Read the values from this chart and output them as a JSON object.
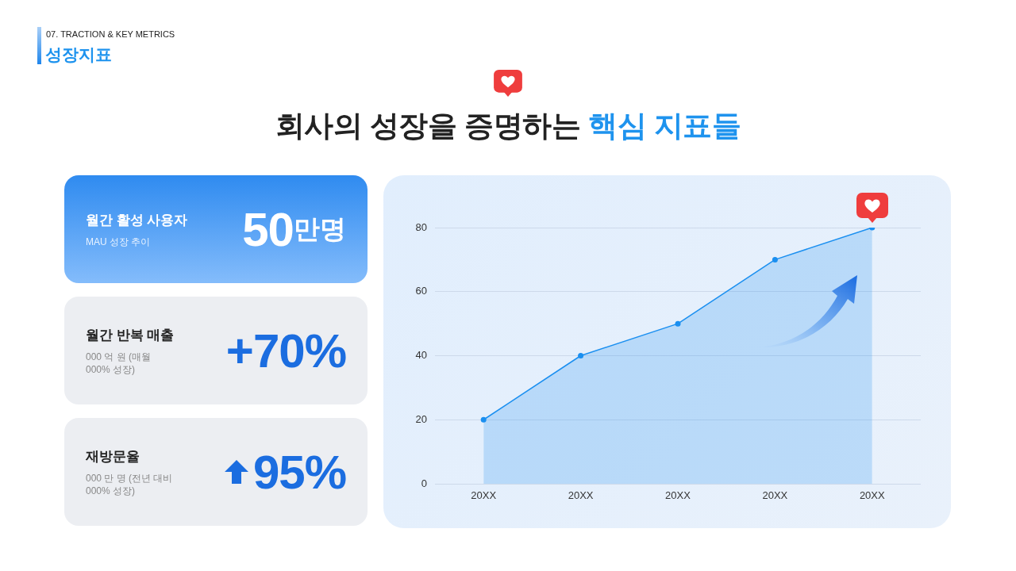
{
  "chart_data": [
    {
      "type": "other",
      "title": "회사의 성장을 증명하는 핵심 지표들",
      "annotations": [
        "07. TRACTION & KEY METRICS",
        "성장지표"
      ]
    },
    {
      "type": "other",
      "annotations": [
        "월간 활성 사용자",
        "MAU 성장 추이",
        "50만명",
        "월간 반복 매출",
        "000 억 원 (매월 000% 성장)",
        "+70%",
        "재방문율",
        "000 만 명 (전년 대비 000% 성장)",
        "95%"
      ]
    },
    {
      "type": "area",
      "categories": [
        "20XX",
        "20XX",
        "20XX",
        "20XX",
        "20XX"
      ],
      "values": [
        20,
        40,
        50,
        70,
        80
      ],
      "color": "#1a8ff0",
      "ylim": [
        0,
        80
      ],
      "yticks": [
        0,
        20,
        40,
        60,
        80
      ],
      "grid": "y",
      "marker": "circle"
    }
  ]
}
